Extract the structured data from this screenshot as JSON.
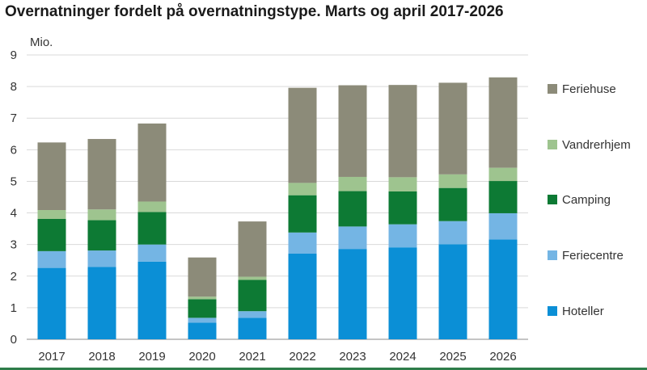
{
  "chart_data": {
    "type": "bar",
    "stacked": true,
    "title": "Overnatninger fordelt på overnatningstype. Marts og april 2017-2026",
    "ylabel": "Mio.",
    "xlabel": "",
    "ylim": [
      0,
      9
    ],
    "yticks": [
      0,
      1,
      2,
      3,
      4,
      5,
      6,
      7,
      8,
      9
    ],
    "grid": true,
    "legend_position": "right",
    "categories": [
      "2017",
      "2018",
      "2019",
      "2020",
      "2021",
      "2022",
      "2023",
      "2024",
      "2025",
      "2026"
    ],
    "series": [
      {
        "name": "Hoteller",
        "color": "#0b8fd6",
        "values": [
          2.26,
          2.29,
          2.46,
          0.53,
          0.68,
          2.71,
          2.86,
          2.91,
          3.01,
          3.16
        ]
      },
      {
        "name": "Feriecentre",
        "color": "#74b5e4",
        "values": [
          0.53,
          0.52,
          0.54,
          0.15,
          0.21,
          0.67,
          0.71,
          0.73,
          0.73,
          0.83
        ]
      },
      {
        "name": "Camping",
        "color": "#0d7a34",
        "values": [
          1.02,
          0.96,
          1.03,
          0.59,
          0.99,
          1.18,
          1.12,
          1.04,
          1.05,
          1.02
        ]
      },
      {
        "name": "Vandrerhjem",
        "color": "#9ec48f",
        "values": [
          0.28,
          0.34,
          0.33,
          0.08,
          0.1,
          0.39,
          0.45,
          0.45,
          0.43,
          0.42
        ]
      },
      {
        "name": "Feriehuse",
        "color": "#8c8b79",
        "values": [
          2.14,
          2.23,
          2.47,
          1.24,
          1.75,
          3.01,
          2.9,
          2.92,
          2.9,
          2.86
        ]
      }
    ]
  }
}
